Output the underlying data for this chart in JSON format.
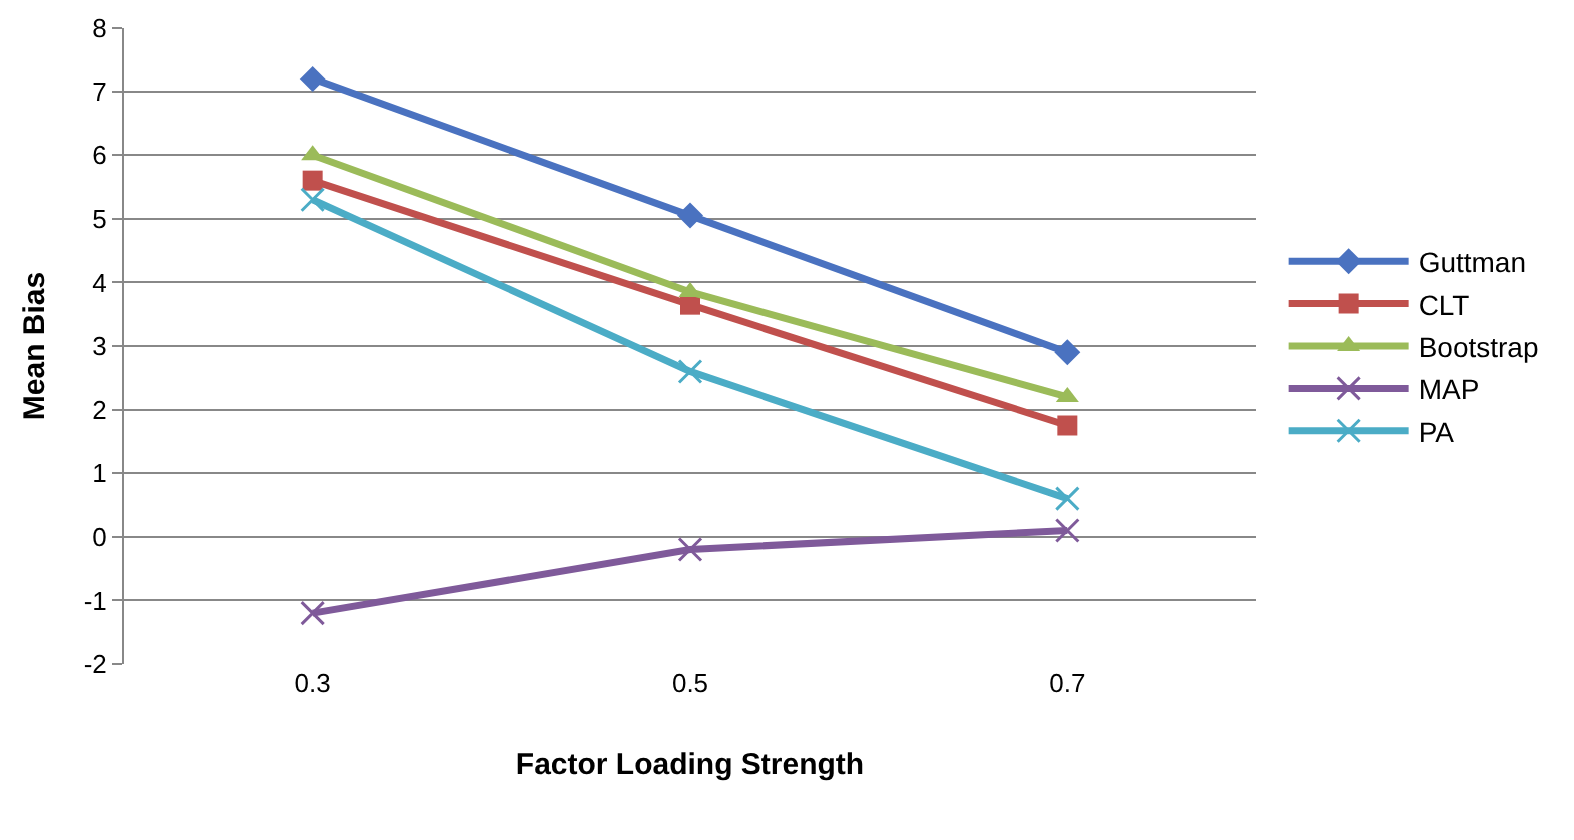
{
  "chart_data": {
    "type": "line",
    "xlabel": "Factor Loading Strength",
    "ylabel": "Mean Bias",
    "categories": [
      "0.3",
      "0.5",
      "0.7"
    ],
    "series": [
      {
        "name": "Guttman",
        "color": "#4a72c0",
        "marker": "diamond",
        "values": [
          7.2,
          5.05,
          2.9
        ]
      },
      {
        "name": "CLT",
        "color": "#c0504d",
        "marker": "square",
        "values": [
          5.6,
          3.65,
          1.75
        ]
      },
      {
        "name": "Bootstrap",
        "color": "#9bbb59",
        "marker": "triangle",
        "values": [
          6.0,
          3.85,
          2.2
        ]
      },
      {
        "name": "MAP",
        "color": "#7f5a9a",
        "marker": "cross",
        "values": [
          -1.2,
          -0.2,
          0.1
        ]
      },
      {
        "name": "PA",
        "color": "#4bacc6",
        "marker": "cross",
        "values": [
          5.3,
          2.6,
          0.6
        ]
      }
    ],
    "ylim": [
      -2,
      8
    ],
    "yticks": [
      -2,
      -1,
      0,
      1,
      2,
      3,
      4,
      5,
      6,
      7,
      8
    ],
    "grid": "y",
    "legend": "right",
    "line_style": "solid"
  }
}
